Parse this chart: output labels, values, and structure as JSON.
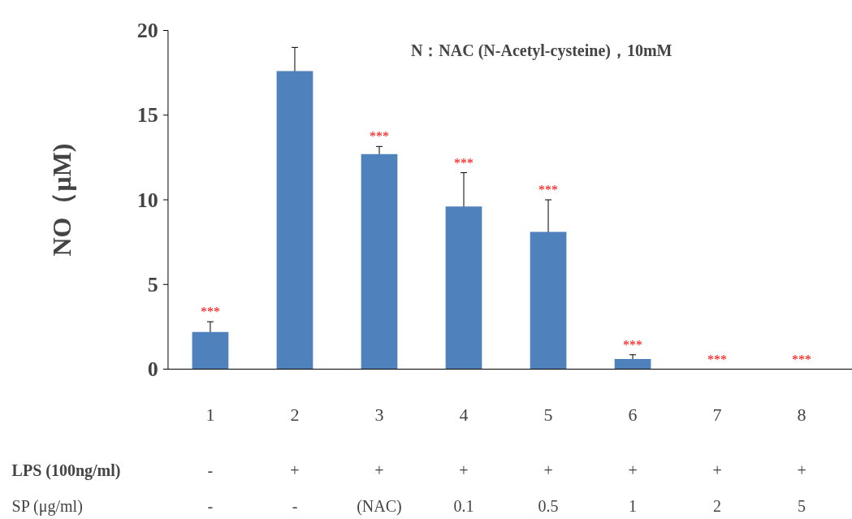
{
  "chart_data": {
    "type": "bar",
    "ylabel": "NO（μM)",
    "categories": [
      "1",
      "2",
      "3",
      "4",
      "5",
      "6",
      "7",
      "8"
    ],
    "values": [
      2.2,
      17.6,
      12.7,
      9.6,
      8.1,
      0.6,
      0,
      0
    ],
    "errors": [
      0.6,
      1.4,
      0.45,
      2.0,
      1.9,
      0.25,
      null,
      null
    ],
    "color": "#4f81bd",
    "ylim": [
      0,
      20
    ],
    "yticks": [
      0,
      5,
      10,
      15,
      20
    ],
    "grid": false,
    "annotations": [
      "N：NAC (N-Acetyl-cysteine)，10mM",
      {
        "text": "***",
        "x": "1",
        "y": 2.8
      },
      {
        "text": "***",
        "x": "3",
        "y": 13.15
      },
      {
        "text": "***",
        "x": "4",
        "y": 11.6
      },
      {
        "text": "***",
        "x": "5",
        "y": 10.0
      },
      {
        "text": "***",
        "x": "6",
        "y": 0.85
      },
      {
        "text": "***",
        "x": "7",
        "y": 0
      },
      {
        "text": "***",
        "x": "8",
        "y": 0
      },
      "LPS (100ng/ml)",
      "-",
      "+",
      "+",
      "+",
      "+",
      "+",
      "+",
      "+",
      "SP (μg/ml)",
      "-",
      "-",
      "(NAC)",
      "0.1",
      "0.5",
      "1",
      "2",
      "5"
    ]
  }
}
